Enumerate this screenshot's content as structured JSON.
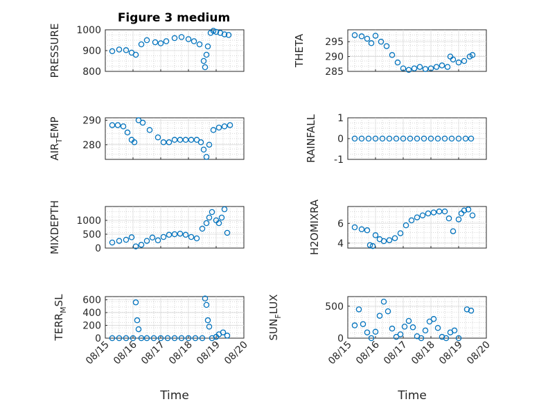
{
  "figure": {
    "title": "Figure 3 medium",
    "xlabel": "Time"
  },
  "chart_data": [
    {
      "type": "scatter",
      "ylabel": "PRESSURE",
      "title": "Figure 3 medium",
      "ylim": [
        800,
        1000
      ],
      "yticks": [
        800,
        900,
        1000
      ],
      "xlim": [
        0,
        5
      ],
      "series": [
        {
          "x": [
            0.25,
            0.5,
            0.75,
            0.95,
            1.1,
            1.3,
            1.5,
            1.8,
            2.0,
            2.2,
            2.5,
            2.75,
            3.0,
            3.2,
            3.4,
            3.55,
            3.6,
            3.65,
            3.7,
            3.8,
            3.9,
            4.0,
            4.15,
            4.3,
            4.45
          ],
          "y": [
            897,
            905,
            902,
            890,
            880,
            930,
            950,
            940,
            935,
            945,
            960,
            965,
            955,
            945,
            930,
            850,
            820,
            880,
            920,
            985,
            995,
            990,
            985,
            978,
            975
          ],
          "color": "#0072bd"
        }
      ]
    },
    {
      "type": "scatter",
      "ylabel": "THETA",
      "ylim": [
        285,
        299
      ],
      "yticks": [
        285,
        290,
        295
      ],
      "xlim": [
        0,
        5
      ],
      "series": [
        {
          "x": [
            0.25,
            0.5,
            0.7,
            0.85,
            1.0,
            1.2,
            1.4,
            1.6,
            1.8,
            2.0,
            2.2,
            2.4,
            2.6,
            2.8,
            3.0,
            3.2,
            3.4,
            3.6,
            3.7,
            3.8,
            4.0,
            4.2,
            4.4,
            4.5
          ],
          "y": [
            297.2,
            296.8,
            296,
            294.5,
            297,
            295,
            293.5,
            290.5,
            288,
            286,
            285.5,
            286,
            286.5,
            285.8,
            286,
            286.5,
            287,
            286.5,
            290,
            289,
            288,
            288.5,
            290,
            290.5
          ],
          "color": "#0072bd"
        }
      ]
    },
    {
      "type": "scatter",
      "ylabel": "AIR_TEMP",
      "ylim": [
        274,
        291
      ],
      "yticks": [
        280,
        290
      ],
      "xlim": [
        0,
        5
      ],
      "series": [
        {
          "x": [
            0.25,
            0.45,
            0.65,
            0.8,
            0.95,
            1.05,
            1.2,
            1.35,
            1.6,
            1.9,
            2.1,
            2.3,
            2.5,
            2.7,
            2.9,
            3.1,
            3.3,
            3.45,
            3.55,
            3.65,
            3.75,
            3.9,
            4.1,
            4.3,
            4.5
          ],
          "y": [
            288,
            288,
            287.5,
            285,
            282,
            281,
            290,
            289,
            286,
            283,
            281,
            281,
            282,
            282,
            282,
            282,
            282,
            281,
            278,
            275,
            280,
            286,
            287,
            287.5,
            288
          ],
          "color": "#0072bd"
        }
      ]
    },
    {
      "type": "scatter",
      "ylabel": "RAINFALL",
      "ylim": [
        -1,
        1
      ],
      "yticks": [
        -1,
        0,
        1
      ],
      "xlim": [
        0,
        5
      ],
      "series": [
        {
          "x": [
            0.25,
            0.5,
            0.75,
            1.0,
            1.25,
            1.5,
            1.75,
            2.0,
            2.25,
            2.5,
            2.75,
            3.0,
            3.25,
            3.5,
            3.75,
            4.0,
            4.25,
            4.45
          ],
          "y": [
            0,
            0,
            0,
            0,
            0,
            0,
            0,
            0,
            0,
            0,
            0,
            0,
            0,
            0,
            0,
            0,
            0,
            0
          ],
          "color": "#0072bd"
        }
      ]
    },
    {
      "type": "scatter",
      "ylabel": "MIXDEPTH",
      "ylim": [
        0,
        1500
      ],
      "yticks": [
        0,
        500,
        1000
      ],
      "xlim": [
        0,
        5
      ],
      "series": [
        {
          "x": [
            0.25,
            0.5,
            0.75,
            0.95,
            1.1,
            1.3,
            1.5,
            1.7,
            1.9,
            2.1,
            2.3,
            2.5,
            2.7,
            2.9,
            3.1,
            3.3,
            3.5,
            3.65,
            3.75,
            3.85,
            4.0,
            4.1,
            4.2,
            4.3,
            4.4
          ],
          "y": [
            200,
            260,
            300,
            390,
            60,
            120,
            260,
            380,
            280,
            400,
            480,
            500,
            520,
            480,
            400,
            350,
            700,
            900,
            1100,
            1300,
            1000,
            900,
            1100,
            1400,
            550
          ],
          "color": "#0072bd"
        }
      ]
    },
    {
      "type": "scatter",
      "ylabel": "H2OMIXRA",
      "ylim": [
        3.5,
        7.7
      ],
      "yticks": [
        4,
        6
      ],
      "xlim": [
        0,
        5
      ],
      "series": [
        {
          "x": [
            0.25,
            0.5,
            0.7,
            0.8,
            0.9,
            1.0,
            1.15,
            1.3,
            1.5,
            1.7,
            1.9,
            2.1,
            2.3,
            2.5,
            2.7,
            2.9,
            3.1,
            3.3,
            3.5,
            3.65,
            3.8,
            4.0,
            4.1,
            4.2,
            4.35,
            4.5
          ],
          "y": [
            5.6,
            5.4,
            5.3,
            3.8,
            3.7,
            4.8,
            4.4,
            4.2,
            4.3,
            4.5,
            5.0,
            5.8,
            6.3,
            6.6,
            6.8,
            7.0,
            7.1,
            7.2,
            7.2,
            6.5,
            5.2,
            6.4,
            7.0,
            7.3,
            7.4,
            6.8
          ],
          "color": "#0072bd"
        }
      ]
    },
    {
      "type": "scatter",
      "ylabel": "TERR_MSL",
      "ylim": [
        0,
        650
      ],
      "yticks": [
        0,
        200,
        400,
        600
      ],
      "xlim": [
        0,
        5
      ],
      "series": [
        {
          "x": [
            0.25,
            0.5,
            0.75,
            1.0,
            1.1,
            1.15,
            1.2,
            1.3,
            1.5,
            1.75,
            2.0,
            2.25,
            2.5,
            2.75,
            3.0,
            3.25,
            3.5,
            3.6,
            3.65,
            3.7,
            3.75,
            3.85,
            4.0,
            4.1,
            4.25,
            4.4
          ],
          "y": [
            0,
            0,
            0,
            0,
            560,
            280,
            140,
            0,
            0,
            0,
            0,
            0,
            0,
            0,
            0,
            0,
            0,
            620,
            520,
            280,
            180,
            0,
            20,
            60,
            90,
            40
          ],
          "color": "#0072bd"
        }
      ]
    },
    {
      "type": "scatter",
      "ylabel": "SUN_FLUX",
      "ylim": [
        0,
        650
      ],
      "yticks": [
        0,
        500
      ],
      "xlim": [
        0,
        5
      ],
      "series": [
        {
          "x": [
            0.25,
            0.4,
            0.55,
            0.7,
            0.85,
            1.0,
            1.15,
            1.3,
            1.45,
            1.6,
            1.75,
            1.9,
            2.05,
            2.2,
            2.35,
            2.5,
            2.65,
            2.8,
            2.95,
            3.1,
            3.25,
            3.4,
            3.55,
            3.7,
            3.85,
            4.0,
            4.3,
            4.45
          ],
          "y": [
            200,
            450,
            220,
            90,
            0,
            100,
            350,
            570,
            420,
            150,
            20,
            60,
            180,
            270,
            170,
            30,
            0,
            120,
            260,
            300,
            160,
            20,
            0,
            90,
            120,
            0,
            450,
            430
          ],
          "color": "#0072bd"
        }
      ]
    }
  ],
  "xticks": [
    "08/15",
    "08/16",
    "08/17",
    "08/18",
    "08/19",
    "08/20"
  ]
}
